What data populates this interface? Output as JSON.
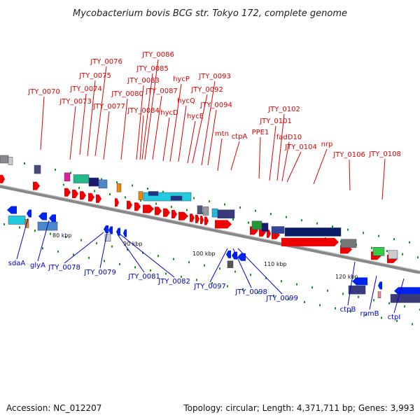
{
  "title": "Mycobacterium bovis BCG str. Tokyo 172, complete genome",
  "footer": {
    "accession": "Accession: NC_012207",
    "summary": "Topology: circular; Length: 4,371,711 bp; Genes: 3,993"
  },
  "colors": {
    "forward_label": "#dd0000",
    "reverse_label": "#0000cc",
    "backbone": "#888888",
    "tick": "#119911",
    "forward_feature": "#ee0000",
    "reverse_feature": "#0022ee"
  },
  "scale_ticks": [
    "80 kbp",
    "90 kbp",
    "100 kbp",
    "110 kbp",
    "120 kbp"
  ],
  "forward_labels": [
    "JTY_0070",
    "JTY_0073",
    "JTY_0074",
    "JTY_0075",
    "JTY_0076",
    "JTY_0077",
    "JTY_0080",
    "JTY_0083",
    "JTY_0084",
    "JTY_0085",
    "JTY_0086",
    "JTY_0087",
    "hycD",
    "hycP",
    "hycQ",
    "hycE",
    "JTY_0092",
    "JTY_0093",
    "JTY_0094",
    "mtn",
    "ctpA",
    "PPE1",
    "JTY_0101",
    "JTY_0102",
    "fadD10",
    "JTY_0104",
    "nrp",
    "JTY_0106",
    "JTY_0108"
  ],
  "reverse_labels": [
    "sdaA",
    "glyA",
    "JTY_0078",
    "JTY_0079",
    "JTY_0081",
    "JTY_0082",
    "JTY_0097",
    "JTY_0098",
    "JTY_0099",
    "ctpB",
    "rpmB",
    "ctpI"
  ]
}
